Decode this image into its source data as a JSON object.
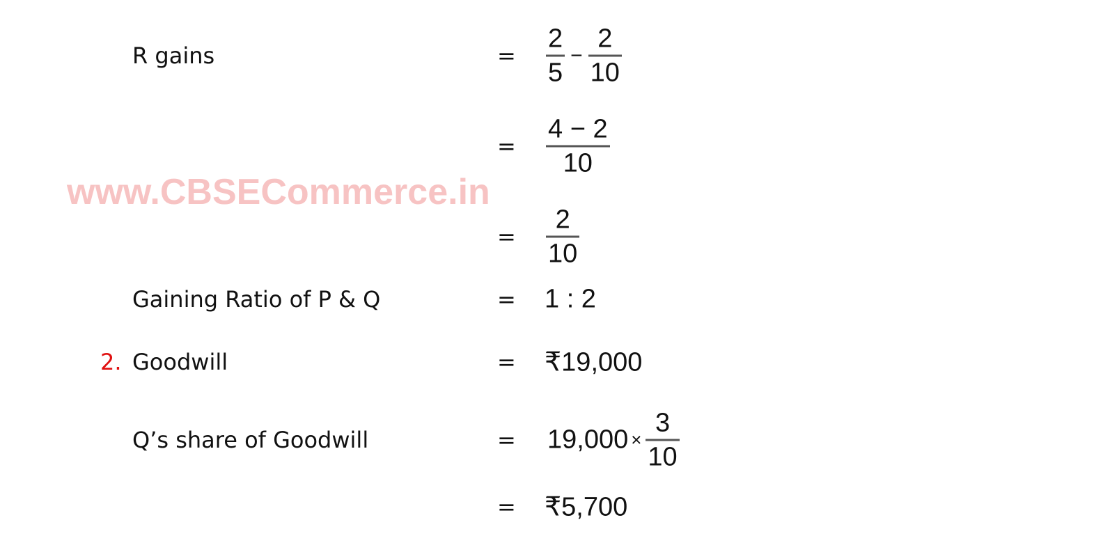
{
  "watermark": "www.CBSECommerce.in",
  "equals": "=",
  "rows": {
    "r_gains": {
      "label": "R gains",
      "f1_num": "2",
      "f1_den": "5",
      "op": "−",
      "f2_num": "2",
      "f2_den": "10"
    },
    "step2": {
      "num": "4 − 2",
      "den": "10"
    },
    "step3": {
      "num": "2",
      "den": "10"
    },
    "gaining_ratio": {
      "label": "Gaining Ratio of P & Q",
      "value": "1 : 2"
    },
    "goodwill": {
      "marker": "2.",
      "label": "Goodwill",
      "value": "₹19,000"
    },
    "q_share": {
      "label": "Q’s share of Goodwill",
      "value": "19,000",
      "op": "×",
      "num": "3",
      "den": "10"
    },
    "result": {
      "value": "₹5,700"
    }
  },
  "colors": {
    "marker": "#e01010",
    "watermark": "#f7c3c3"
  }
}
